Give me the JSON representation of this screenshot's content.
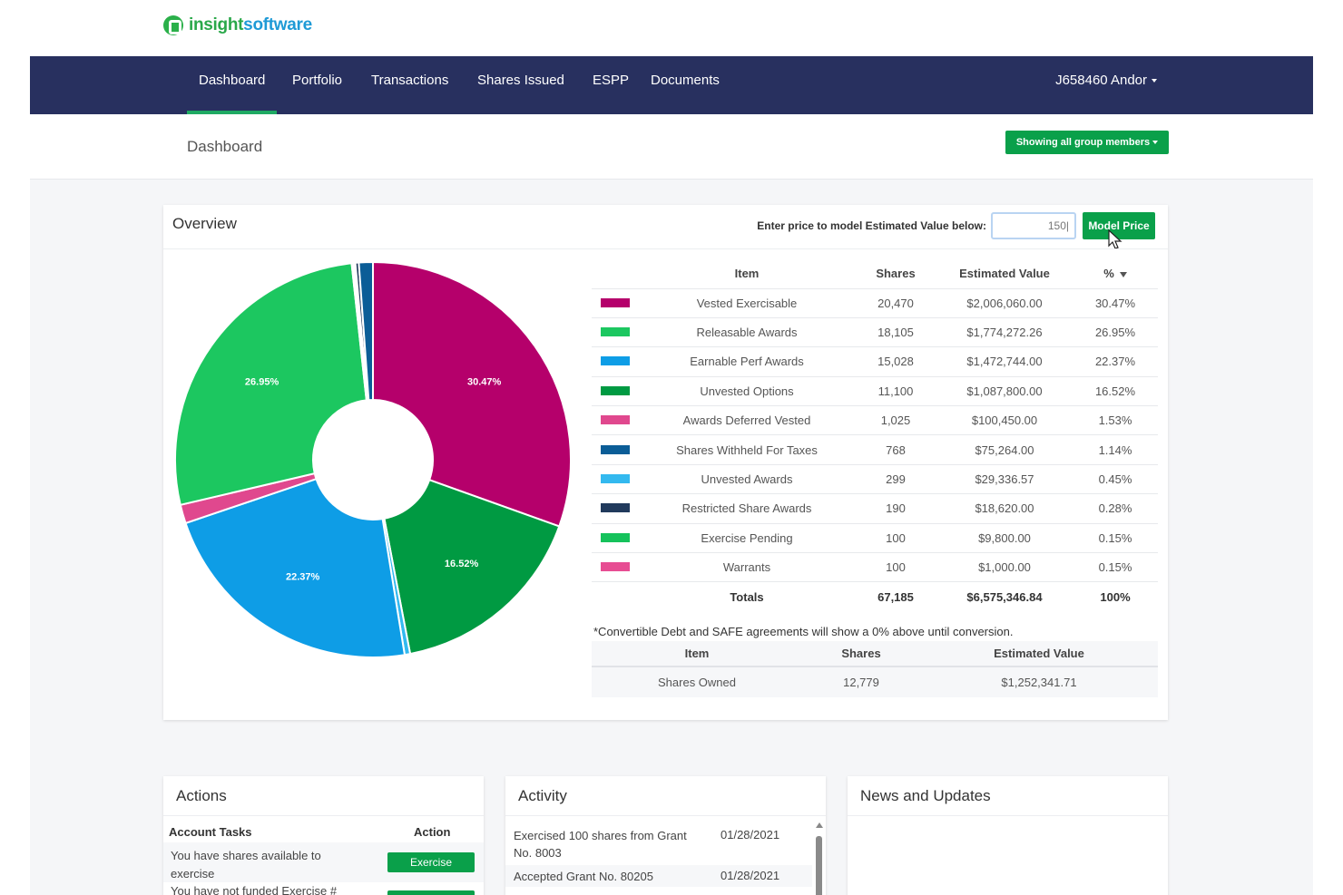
{
  "app": {
    "logo_a": "insight",
    "logo_b": "software"
  },
  "nav": {
    "items": [
      "Dashboard",
      "Portfolio",
      "Transactions",
      "Shares Issued",
      "ESPP",
      "Documents"
    ],
    "active": "Dashboard",
    "user": "J658460 Andor"
  },
  "page": {
    "title": "Dashboard",
    "group_filter": "Showing all group members"
  },
  "overview": {
    "title": "Overview",
    "model_label": "Enter price to model Estimated Value below:",
    "model_value": "150|",
    "model_button": "Model Price",
    "columns": [
      "Item",
      "Shares",
      "Estimated Value",
      "%"
    ],
    "rows": [
      {
        "color": "#b5006b",
        "item": "Vested Exercisable",
        "shares": "20,470",
        "value": "$2,006,060.00",
        "pct": "30.47%"
      },
      {
        "color": "#1cc760",
        "item": "Releasable Awards",
        "shares": "18,105",
        "value": "$1,774,272.26",
        "pct": "26.95%"
      },
      {
        "color": "#0e9de6",
        "item": "Earnable Perf Awards",
        "shares": "15,028",
        "value": "$1,472,744.00",
        "pct": "22.37%"
      },
      {
        "color": "#009a42",
        "item": "Unvested Options",
        "shares": "11,100",
        "value": "$1,087,800.00",
        "pct": "16.52%"
      },
      {
        "color": "#e0488e",
        "item": "Awards Deferred Vested",
        "shares": "1,025",
        "value": "$100,450.00",
        "pct": "1.53%"
      },
      {
        "color": "#0b5d97",
        "item": "Shares Withheld For Taxes",
        "shares": "768",
        "value": "$75,264.00",
        "pct": "1.14%"
      },
      {
        "color": "#33b9ef",
        "item": "Unvested Awards",
        "shares": "299",
        "value": "$29,336.57",
        "pct": "0.45%"
      },
      {
        "color": "#213a5c",
        "item": "Restricted Share Awards",
        "shares": "190",
        "value": "$18,620.00",
        "pct": "0.28%"
      },
      {
        "color": "#15c25b",
        "item": "Exercise Pending",
        "shares": "100",
        "value": "$9,800.00",
        "pct": "0.15%"
      },
      {
        "color": "#e74d93",
        "item": "Warrants",
        "shares": "100",
        "value": "$1,000.00",
        "pct": "0.15%"
      }
    ],
    "totals": {
      "label": "Totals",
      "shares": "67,185",
      "value": "$6,575,346.84",
      "pct": "100%"
    },
    "pie_labels": {
      "Vested Exercisable": "30.47%",
      "Releasable Awards": "26.95%",
      "Earnable Perf Awards": "22.37%",
      "Unvested Options": "16.52%"
    },
    "note": "*Convertible Debt and SAFE agreements will show a 0% above until conversion.",
    "owned": {
      "columns": [
        "Item",
        "Shares",
        "Estimated Value"
      ],
      "rows": [
        {
          "item": "Shares Owned",
          "shares": "12,779",
          "value": "$1,252,341.71"
        }
      ]
    }
  },
  "chart_data": {
    "type": "pie",
    "categories": [
      "Vested Exercisable",
      "Releasable Awards",
      "Earnable Perf Awards",
      "Unvested Options",
      "Awards Deferred Vested",
      "Shares Withheld For Taxes",
      "Unvested Awards",
      "Restricted Share Awards",
      "Exercise Pending",
      "Warrants"
    ],
    "values": [
      30.47,
      26.95,
      22.37,
      16.52,
      1.53,
      1.14,
      0.45,
      0.28,
      0.15,
      0.15
    ],
    "slice_order": [
      "Vested Exercisable",
      "Unvested Options",
      "Unvested Awards",
      "Earnable Perf Awards",
      "Awards Deferred Vested",
      "Releasable Awards",
      "Exercise Pending",
      "Warrants",
      "Restricted Share Awards",
      "Shares Withheld For Taxes"
    ],
    "donut": true
  },
  "actions": {
    "title": "Actions",
    "col_task": "Account Tasks",
    "col_action": "Action",
    "rows": [
      {
        "text": "You have shares available to exercise",
        "button": "Exercise"
      },
      {
        "text": "You have not funded Exercise #"
      }
    ]
  },
  "activity": {
    "title": "Activity",
    "items": [
      {
        "text": "Exercised 100 shares from Grant No. 8003",
        "date": "01/28/2021"
      },
      {
        "text": "Accepted Grant No. 80205",
        "date": "01/28/2021"
      }
    ]
  },
  "news": {
    "title": "News and Updates"
  }
}
